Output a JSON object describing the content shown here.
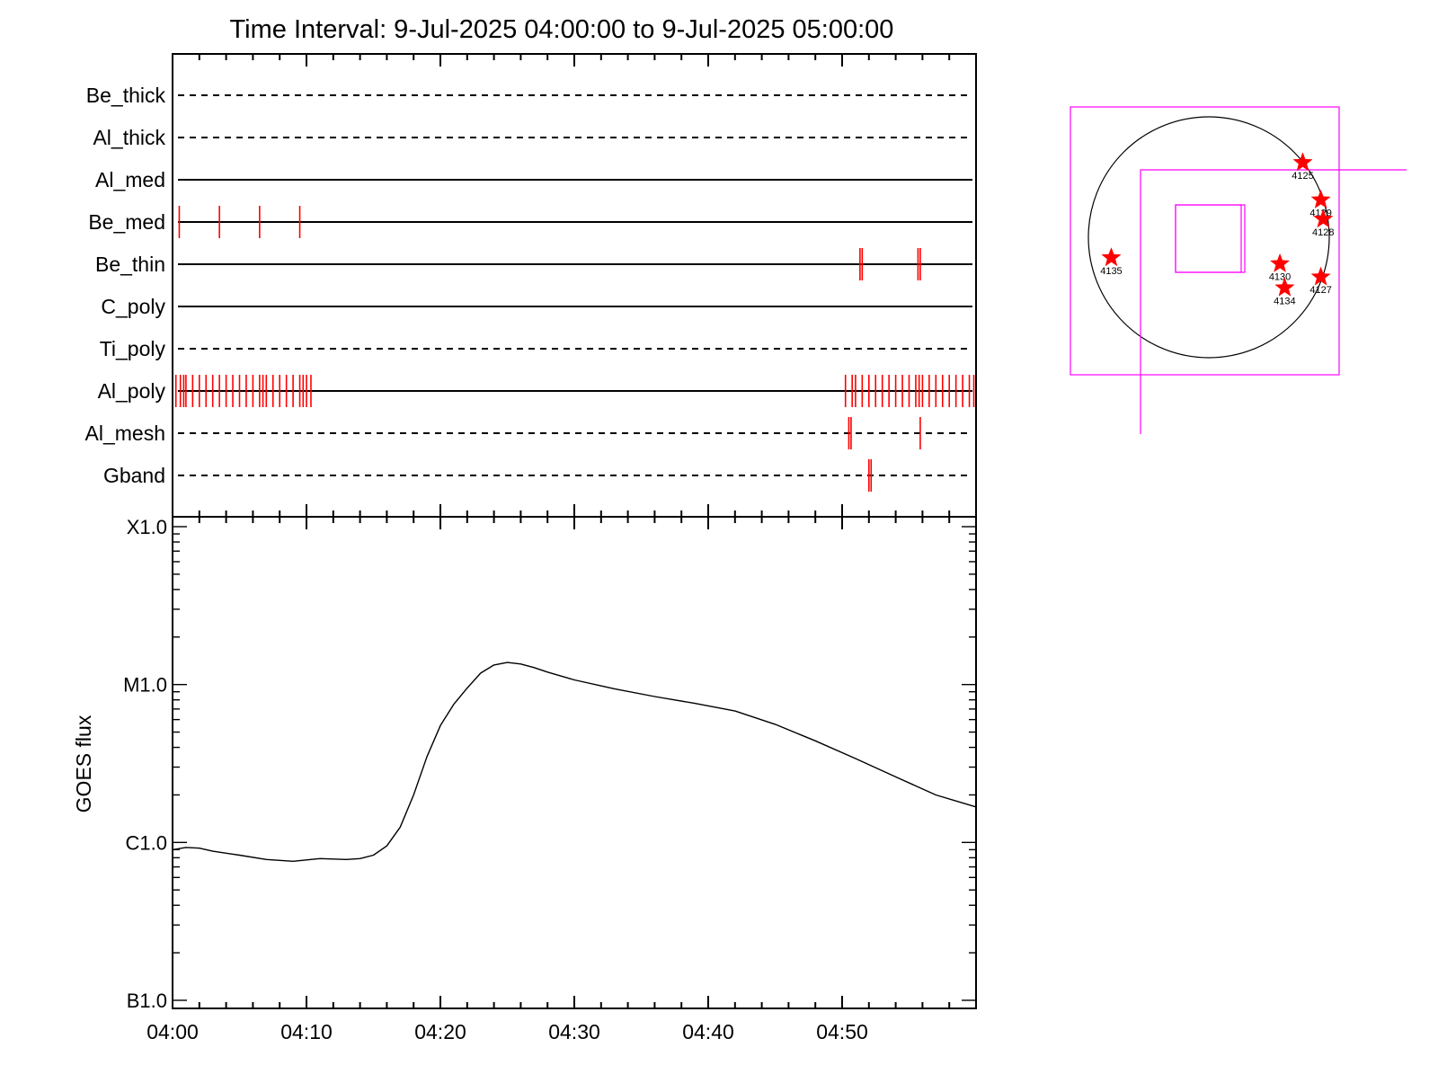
{
  "title": "Time Interval:  9-Jul-2025 04:00:00 to  9-Jul-2025 05:00:00",
  "colors": {
    "marks": "#ff0000",
    "frame": "#000000",
    "fov": "#ff00ff",
    "curve": "#000000"
  },
  "chart_data": [
    {
      "type": "scatter",
      "name": "attenuator-and-channel-timeline",
      "x_unit": "UT (HH:MM)",
      "xlim": [
        "04:00",
        "05:00"
      ],
      "x_ticks": [
        "04:00",
        "04:10",
        "04:20",
        "04:30",
        "04:40",
        "04:50"
      ],
      "rows": [
        {
          "label": "Be_thick",
          "style": "dashed",
          "times": []
        },
        {
          "label": "Al_thick",
          "style": "dashed",
          "times": []
        },
        {
          "label": "Al_med",
          "style": "solid",
          "times": []
        },
        {
          "label": "Be_med",
          "style": "solid",
          "times": [
            "04:00:30",
            "04:03:30",
            "04:06:30",
            "04:09:30"
          ]
        },
        {
          "label": "Be_thin",
          "style": "solid",
          "times": [
            "04:51:20",
            "04:51:30",
            "04:55:40",
            "04:55:50"
          ]
        },
        {
          "label": "C_poly",
          "style": "solid",
          "times": []
        },
        {
          "label": "Ti_poly",
          "style": "dashed",
          "times": []
        },
        {
          "label": "Al_poly",
          "style": "solid",
          "times": [
            "04:00:15",
            "04:00:35",
            "04:00:50",
            "04:01:00",
            "04:01:30",
            "04:02:00",
            "04:02:30",
            "04:03:00",
            "04:03:30",
            "04:04:00",
            "04:04:30",
            "04:05:00",
            "04:05:30",
            "04:06:00",
            "04:06:30",
            "04:06:45",
            "04:07:00",
            "04:07:30",
            "04:08:00",
            "04:08:30",
            "04:09:00",
            "04:09:30",
            "04:09:45",
            "04:10:00",
            "04:10:20",
            "04:50:15",
            "04:50:45",
            "04:51:00",
            "04:51:30",
            "04:52:00",
            "04:52:30",
            "04:53:00",
            "04:53:30",
            "04:54:00",
            "04:54:30",
            "04:55:00",
            "04:55:30",
            "04:55:45",
            "04:56:00",
            "04:56:30",
            "04:57:00",
            "04:57:30",
            "04:58:00",
            "04:58:30",
            "04:59:00",
            "04:59:30",
            "04:59:50"
          ]
        },
        {
          "label": "Al_mesh",
          "style": "dashed",
          "times": [
            "04:50:30",
            "04:50:40",
            "04:55:50"
          ]
        },
        {
          "label": "Gband",
          "style": "dashed",
          "times": [
            "04:52:00",
            "04:52:10"
          ]
        }
      ]
    },
    {
      "type": "line",
      "name": "goes-light-curve",
      "ylabel": "GOES flux",
      "yscale": "log",
      "ylim": [
        1e-07,
        0.0001
      ],
      "y_tick_labels": [
        {
          "label": "B1.0",
          "value": 1e-07
        },
        {
          "label": "C1.0",
          "value": 1e-06
        },
        {
          "label": "M1.0",
          "value": 1e-05
        },
        {
          "label": "X1.0",
          "value": 0.0001
        }
      ],
      "xlim": [
        "04:00",
        "05:00"
      ],
      "x_tick_labels": [
        "04:00",
        "04:10",
        "04:20",
        "04:30",
        "04:40",
        "04:50"
      ],
      "x": [
        "04:00:00",
        "04:01:00",
        "04:02:00",
        "04:03:00",
        "04:05:00",
        "04:07:00",
        "04:09:00",
        "04:11:00",
        "04:13:00",
        "04:14:00",
        "04:15:00",
        "04:16:00",
        "04:17:00",
        "04:18:00",
        "04:19:00",
        "04:20:00",
        "04:21:00",
        "04:22:00",
        "04:23:00",
        "04:24:00",
        "04:25:00",
        "04:26:00",
        "04:27:00",
        "04:28:00",
        "04:30:00",
        "04:33:00",
        "04:36:00",
        "04:39:00",
        "04:42:00",
        "04:45:00",
        "04:48:00",
        "04:51:00",
        "04:54:00",
        "04:57:00",
        "04:59:59"
      ],
      "y": [
        9e-07,
        9.3e-07,
        9.2e-07,
        8.8e-07,
        8.3e-07,
        7.8e-07,
        7.6e-07,
        7.9e-07,
        7.8e-07,
        7.9e-07,
        8.3e-07,
        9.5e-07,
        1.25e-06,
        2e-06,
        3.5e-06,
        5.5e-06,
        7.5e-06,
        9.5e-06,
        1.18e-05,
        1.33e-05,
        1.38e-05,
        1.35e-05,
        1.28e-05,
        1.2e-05,
        1.07e-05,
        9.4e-06,
        8.4e-06,
        7.6e-06,
        6.8e-06,
        5.6e-06,
        4.4e-06,
        3.4e-06,
        2.6e-06,
        2e-06,
        1.68e-06
      ]
    },
    {
      "type": "scatter",
      "name": "solar-disk-locator",
      "points": [
        {
          "label": "4125",
          "x": 0.78,
          "y": 0.62
        },
        {
          "label": "4129",
          "x": 0.93,
          "y": 0.31
        },
        {
          "label": "4128",
          "x": 0.95,
          "y": 0.15
        },
        {
          "label": "4135",
          "x": -0.81,
          "y": -0.17
        },
        {
          "label": "4130",
          "x": 0.59,
          "y": -0.22
        },
        {
          "label": "4127",
          "x": 0.93,
          "y": -0.33
        },
        {
          "label": "4134",
          "x": 0.63,
          "y": -0.42
        }
      ]
    }
  ]
}
